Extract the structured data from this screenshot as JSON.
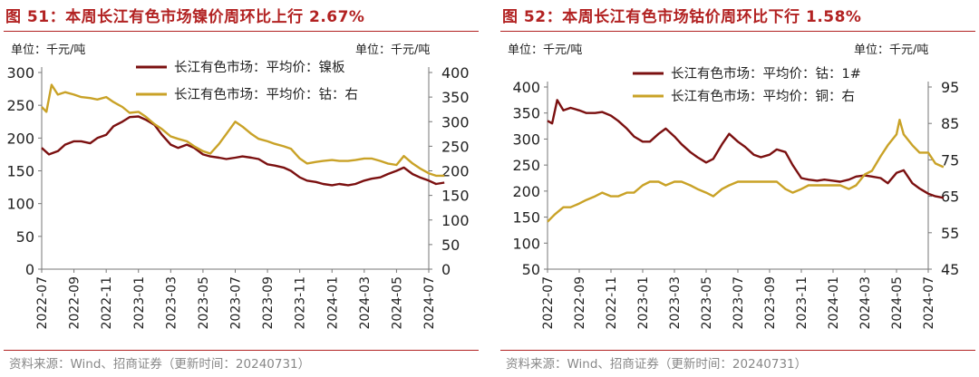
{
  "charts": [
    {
      "title": "图 51：本周长江有色市场镍价周环比上行 2.67%",
      "unit_left": "单位：千元/吨",
      "unit_right": "单位：千元/吨",
      "source": "资料来源：Wind、招商证券（更新时间：20240731）"
    },
    {
      "title": "图 52：本周长江有色市场钴价周环比下行 1.58%",
      "unit_left": "单位：千元/吨",
      "unit_right": "单位：千元/吨",
      "source": "资料来源：Wind、招商证券（更新时间：20240731）"
    }
  ],
  "colors": {
    "title": "#b22222",
    "series_dark": "#7b1010",
    "series_gold": "#c9a227",
    "axis": "#777777"
  },
  "chart_data": [
    {
      "type": "line",
      "x_ticks": [
        "2022-07",
        "2022-09",
        "2022-11",
        "2023-01",
        "2023-03",
        "2023-05",
        "2023-07",
        "2023-09",
        "2023-11",
        "2024-01",
        "2024-03",
        "2024-05",
        "2024-07"
      ],
      "x_range": [
        "2022-07",
        "2024-07"
      ],
      "y_left": {
        "min": 0,
        "max": 300,
        "ticks": [
          0,
          50,
          100,
          150,
          200,
          250,
          300
        ]
      },
      "y_right": {
        "min": 0,
        "max": 400,
        "ticks": [
          0,
          50,
          100,
          150,
          200,
          250,
          300,
          350,
          400
        ]
      },
      "legend_position": "top-center",
      "series": [
        {
          "name": "长江有色市场：平均价：镍板",
          "axis": "left",
          "color": "#7b1010",
          "points": [
            [
              "2022-07-01",
              185
            ],
            [
              "2022-07-15",
              175
            ],
            [
              "2022-08-01",
              180
            ],
            [
              "2022-08-15",
              190
            ],
            [
              "2022-09-01",
              195
            ],
            [
              "2022-09-15",
              195
            ],
            [
              "2022-10-01",
              192
            ],
            [
              "2022-10-15",
              200
            ],
            [
              "2022-11-01",
              205
            ],
            [
              "2022-11-15",
              218
            ],
            [
              "2022-12-01",
              225
            ],
            [
              "2022-12-15",
              232
            ],
            [
              "2023-01-01",
              233
            ],
            [
              "2023-01-15",
              228
            ],
            [
              "2023-02-01",
              220
            ],
            [
              "2023-02-15",
              205
            ],
            [
              "2023-03-01",
              190
            ],
            [
              "2023-03-15",
              185
            ],
            [
              "2023-04-01",
              190
            ],
            [
              "2023-04-15",
              185
            ],
            [
              "2023-05-01",
              175
            ],
            [
              "2023-05-15",
              172
            ],
            [
              "2023-06-01",
              170
            ],
            [
              "2023-06-15",
              168
            ],
            [
              "2023-07-01",
              170
            ],
            [
              "2023-07-15",
              172
            ],
            [
              "2023-08-01",
              170
            ],
            [
              "2023-08-15",
              168
            ],
            [
              "2023-09-01",
              160
            ],
            [
              "2023-09-15",
              158
            ],
            [
              "2023-10-01",
              155
            ],
            [
              "2023-10-15",
              150
            ],
            [
              "2023-11-01",
              140
            ],
            [
              "2023-11-15",
              135
            ],
            [
              "2023-12-01",
              133
            ],
            [
              "2023-12-15",
              130
            ],
            [
              "2024-01-01",
              128
            ],
            [
              "2024-01-15",
              130
            ],
            [
              "2024-02-01",
              128
            ],
            [
              "2024-02-15",
              130
            ],
            [
              "2024-03-01",
              135
            ],
            [
              "2024-03-15",
              138
            ],
            [
              "2024-04-01",
              140
            ],
            [
              "2024-04-15",
              145
            ],
            [
              "2024-05-01",
              150
            ],
            [
              "2024-05-15",
              155
            ],
            [
              "2024-06-01",
              145
            ],
            [
              "2024-06-15",
              140
            ],
            [
              "2024-07-01",
              135
            ],
            [
              "2024-07-15",
              130
            ],
            [
              "2024-07-31",
              132
            ]
          ]
        },
        {
          "name": "长江有色市场：平均价：钴：右",
          "axis": "right",
          "color": "#c9a227",
          "points": [
            [
              "2022-07-01",
              330
            ],
            [
              "2022-07-10",
              320
            ],
            [
              "2022-07-20",
              375
            ],
            [
              "2022-08-01",
              355
            ],
            [
              "2022-08-15",
              360
            ],
            [
              "2022-09-01",
              355
            ],
            [
              "2022-09-15",
              350
            ],
            [
              "2022-10-01",
              348
            ],
            [
              "2022-10-15",
              345
            ],
            [
              "2022-11-01",
              350
            ],
            [
              "2022-11-15",
              340
            ],
            [
              "2022-12-01",
              330
            ],
            [
              "2022-12-15",
              318
            ],
            [
              "2023-01-01",
              320
            ],
            [
              "2023-01-15",
              310
            ],
            [
              "2023-02-01",
              295
            ],
            [
              "2023-02-15",
              285
            ],
            [
              "2023-03-01",
              270
            ],
            [
              "2023-03-15",
              265
            ],
            [
              "2023-04-01",
              260
            ],
            [
              "2023-04-15",
              250
            ],
            [
              "2023-05-01",
              240
            ],
            [
              "2023-05-15",
              235
            ],
            [
              "2023-06-01",
              255
            ],
            [
              "2023-06-15",
              275
            ],
            [
              "2023-07-01",
              300
            ],
            [
              "2023-07-15",
              290
            ],
            [
              "2023-08-01",
              275
            ],
            [
              "2023-08-15",
              265
            ],
            [
              "2023-09-01",
              260
            ],
            [
              "2023-09-15",
              255
            ],
            [
              "2023-10-01",
              250
            ],
            [
              "2023-10-15",
              245
            ],
            [
              "2023-11-01",
              225
            ],
            [
              "2023-11-15",
              215
            ],
            [
              "2023-12-01",
              218
            ],
            [
              "2023-12-15",
              220
            ],
            [
              "2024-01-01",
              222
            ],
            [
              "2024-01-15",
              220
            ],
            [
              "2024-02-01",
              220
            ],
            [
              "2024-02-15",
              222
            ],
            [
              "2024-03-01",
              225
            ],
            [
              "2024-03-15",
              225
            ],
            [
              "2024-04-01",
              220
            ],
            [
              "2024-04-15",
              215
            ],
            [
              "2024-05-01",
              212
            ],
            [
              "2024-05-15",
              230
            ],
            [
              "2024-06-01",
              215
            ],
            [
              "2024-06-15",
              205
            ],
            [
              "2024-07-01",
              195
            ],
            [
              "2024-07-15",
              190
            ],
            [
              "2024-07-31",
              190
            ]
          ]
        }
      ]
    },
    {
      "type": "line",
      "x_ticks": [
        "2022-07",
        "2022-09",
        "2022-11",
        "2023-01",
        "2023-03",
        "2023-05",
        "2023-07",
        "2023-09",
        "2023-11",
        "2024-01",
        "2024-03",
        "2024-05",
        "2024-07"
      ],
      "x_range": [
        "2022-07",
        "2024-07"
      ],
      "y_left": {
        "min": 50,
        "max": 400,
        "ticks": [
          50,
          100,
          150,
          200,
          250,
          300,
          350,
          400
        ]
      },
      "y_right": {
        "min": 45,
        "max": 95,
        "ticks": [
          45,
          55,
          65,
          75,
          85,
          95
        ]
      },
      "legend_position": "top-center",
      "series": [
        {
          "name": "长江有色市场：平均价：钴：1#",
          "axis": "left",
          "color": "#7b1010",
          "points": [
            [
              "2022-07-01",
              335
            ],
            [
              "2022-07-10",
              330
            ],
            [
              "2022-07-20",
              375
            ],
            [
              "2022-08-01",
              355
            ],
            [
              "2022-08-15",
              360
            ],
            [
              "2022-09-01",
              355
            ],
            [
              "2022-09-15",
              350
            ],
            [
              "2022-10-01",
              350
            ],
            [
              "2022-10-15",
              352
            ],
            [
              "2022-11-01",
              345
            ],
            [
              "2022-11-15",
              335
            ],
            [
              "2022-12-01",
              320
            ],
            [
              "2022-12-15",
              305
            ],
            [
              "2023-01-01",
              295
            ],
            [
              "2023-01-15",
              295
            ],
            [
              "2023-02-01",
              310
            ],
            [
              "2023-02-15",
              320
            ],
            [
              "2023-03-01",
              305
            ],
            [
              "2023-03-15",
              290
            ],
            [
              "2023-04-01",
              275
            ],
            [
              "2023-04-15",
              265
            ],
            [
              "2023-05-01",
              255
            ],
            [
              "2023-05-15",
              262
            ],
            [
              "2023-06-01",
              290
            ],
            [
              "2023-06-15",
              310
            ],
            [
              "2023-07-01",
              295
            ],
            [
              "2023-07-15",
              285
            ],
            [
              "2023-08-01",
              270
            ],
            [
              "2023-08-15",
              265
            ],
            [
              "2023-09-01",
              270
            ],
            [
              "2023-09-15",
              280
            ],
            [
              "2023-10-01",
              275
            ],
            [
              "2023-10-15",
              250
            ],
            [
              "2023-11-01",
              225
            ],
            [
              "2023-11-15",
              222
            ],
            [
              "2023-12-01",
              220
            ],
            [
              "2023-12-15",
              222
            ],
            [
              "2024-01-01",
              220
            ],
            [
              "2024-01-15",
              218
            ],
            [
              "2024-02-01",
              222
            ],
            [
              "2024-02-15",
              228
            ],
            [
              "2024-03-01",
              230
            ],
            [
              "2024-03-15",
              228
            ],
            [
              "2024-04-01",
              225
            ],
            [
              "2024-04-15",
              215
            ],
            [
              "2024-05-01",
              235
            ],
            [
              "2024-05-15",
              240
            ],
            [
              "2024-06-01",
              215
            ],
            [
              "2024-06-15",
              205
            ],
            [
              "2024-07-01",
              195
            ],
            [
              "2024-07-15",
              190
            ],
            [
              "2024-07-31",
              187
            ]
          ]
        },
        {
          "name": "长江有色市场：平均价：铜：右",
          "axis": "right",
          "color": "#c9a227",
          "points": [
            [
              "2022-07-01",
              58
            ],
            [
              "2022-07-15",
              60
            ],
            [
              "2022-08-01",
              62
            ],
            [
              "2022-08-15",
              62
            ],
            [
              "2022-09-01",
              63
            ],
            [
              "2022-09-15",
              64
            ],
            [
              "2022-10-01",
              65
            ],
            [
              "2022-10-15",
              66
            ],
            [
              "2022-11-01",
              65
            ],
            [
              "2022-11-15",
              65
            ],
            [
              "2022-12-01",
              66
            ],
            [
              "2022-12-15",
              66
            ],
            [
              "2023-01-01",
              68
            ],
            [
              "2023-01-15",
              69
            ],
            [
              "2023-02-01",
              69
            ],
            [
              "2023-02-15",
              68
            ],
            [
              "2023-03-01",
              69
            ],
            [
              "2023-03-15",
              69
            ],
            [
              "2023-04-01",
              68
            ],
            [
              "2023-04-15",
              67
            ],
            [
              "2023-05-01",
              66
            ],
            [
              "2023-05-15",
              65
            ],
            [
              "2023-06-01",
              67
            ],
            [
              "2023-06-15",
              68
            ],
            [
              "2023-07-01",
              69
            ],
            [
              "2023-07-15",
              69
            ],
            [
              "2023-08-01",
              69
            ],
            [
              "2023-08-15",
              69
            ],
            [
              "2023-09-01",
              69
            ],
            [
              "2023-09-15",
              69
            ],
            [
              "2023-10-01",
              67
            ],
            [
              "2023-10-15",
              66
            ],
            [
              "2023-11-01",
              67
            ],
            [
              "2023-11-15",
              68
            ],
            [
              "2023-12-01",
              68
            ],
            [
              "2023-12-15",
              68
            ],
            [
              "2024-01-01",
              68
            ],
            [
              "2024-01-15",
              68
            ],
            [
              "2024-02-01",
              67
            ],
            [
              "2024-02-15",
              68
            ],
            [
              "2024-03-01",
              71
            ],
            [
              "2024-03-15",
              72
            ],
            [
              "2024-04-01",
              76
            ],
            [
              "2024-04-15",
              79
            ],
            [
              "2024-05-01",
              82
            ],
            [
              "2024-05-07",
              86
            ],
            [
              "2024-05-15",
              82
            ],
            [
              "2024-06-01",
              79
            ],
            [
              "2024-06-15",
              77
            ],
            [
              "2024-07-01",
              77
            ],
            [
              "2024-07-15",
              74
            ],
            [
              "2024-07-31",
              73
            ]
          ]
        }
      ]
    }
  ]
}
